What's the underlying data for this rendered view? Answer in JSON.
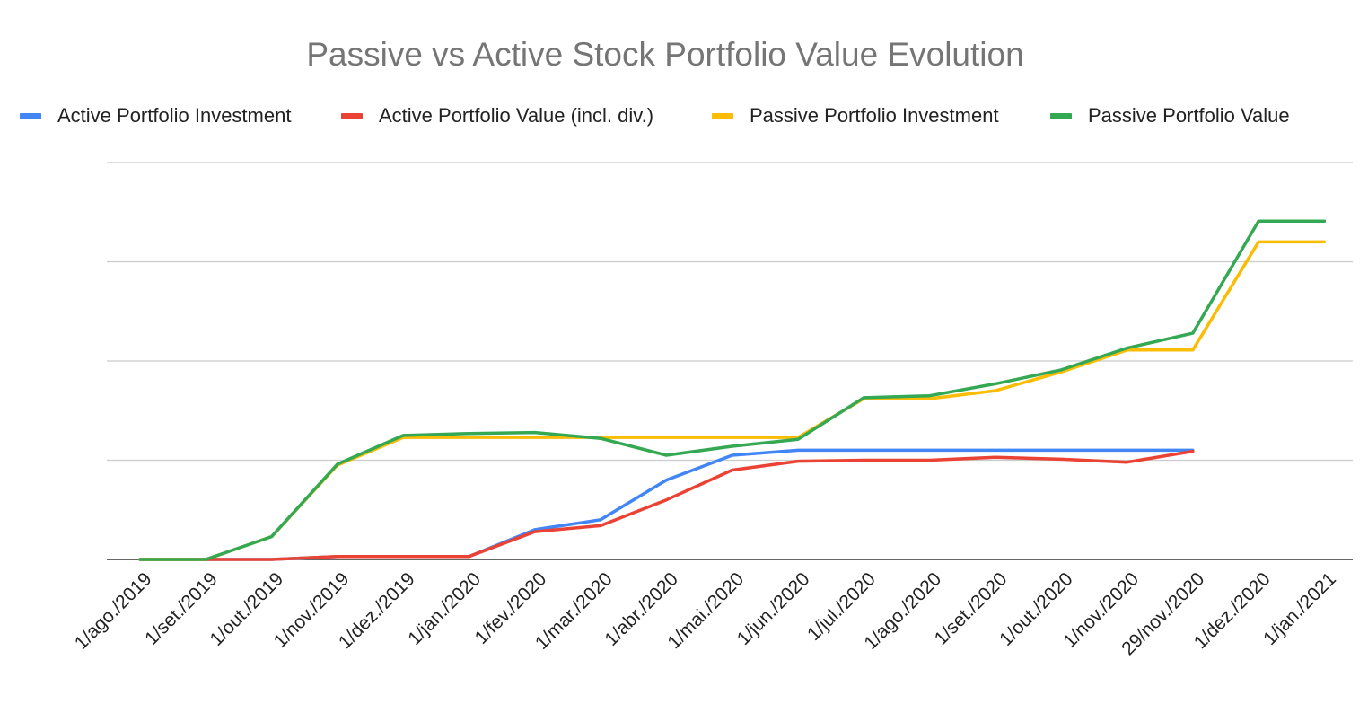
{
  "chart_data": {
    "type": "line",
    "title": "Passive vs Active Stock Portfolio Value Evolution",
    "categories": [
      "1/ago./2019",
      "1/set./2019",
      "1/out./2019",
      "1/nov./2019",
      "1/dez./2019",
      "1/jan./2020",
      "1/fev./2020",
      "1/mar./2020",
      "1/abr./2020",
      "1/mai./2020",
      "1/jun./2020",
      "1/jul./2020",
      "1/ago./2020",
      "1/set./2020",
      "1/out./2020",
      "1/nov./2020",
      "29/nov./2020",
      "1/dez./2020",
      "1/jan./2021"
    ],
    "series": [
      {
        "name": "Active Portfolio Investment",
        "color": "#4285f4",
        "values": [
          0,
          0,
          0,
          0.3,
          0.3,
          0.3,
          3.0,
          4.0,
          8.0,
          10.5,
          11.0,
          11.0,
          11.0,
          11.0,
          11.0,
          11.0,
          11.0,
          null,
          null
        ]
      },
      {
        "name": "Active Portfolio Value (incl. div.)",
        "color": "#ea4335",
        "values": [
          0,
          0,
          0,
          0.3,
          0.3,
          0.3,
          2.8,
          3.4,
          6.0,
          9.0,
          9.9,
          10.0,
          10.0,
          10.3,
          10.1,
          9.8,
          10.9,
          null,
          null
        ]
      },
      {
        "name": "Passive Portfolio Investment",
        "color": "#fbbc04",
        "values": [
          0,
          0,
          2.3,
          9.5,
          12.3,
          12.3,
          12.3,
          12.3,
          12.3,
          12.3,
          12.3,
          16.2,
          16.2,
          17.0,
          18.9,
          21.1,
          21.1,
          32.0,
          32.0
        ]
      },
      {
        "name": "Passive Portfolio Value",
        "color": "#34a853",
        "values": [
          0,
          0,
          2.3,
          9.6,
          12.5,
          12.7,
          12.8,
          12.2,
          10.5,
          11.4,
          12.1,
          16.3,
          16.5,
          17.7,
          19.1,
          21.3,
          22.8,
          34.1,
          34.1
        ]
      }
    ],
    "ylim": [
      0,
      40
    ],
    "y_gridlines": [
      0,
      10,
      20,
      30,
      40
    ],
    "grid": true,
    "legend_position": "top",
    "xlabel": "",
    "ylabel": ""
  }
}
